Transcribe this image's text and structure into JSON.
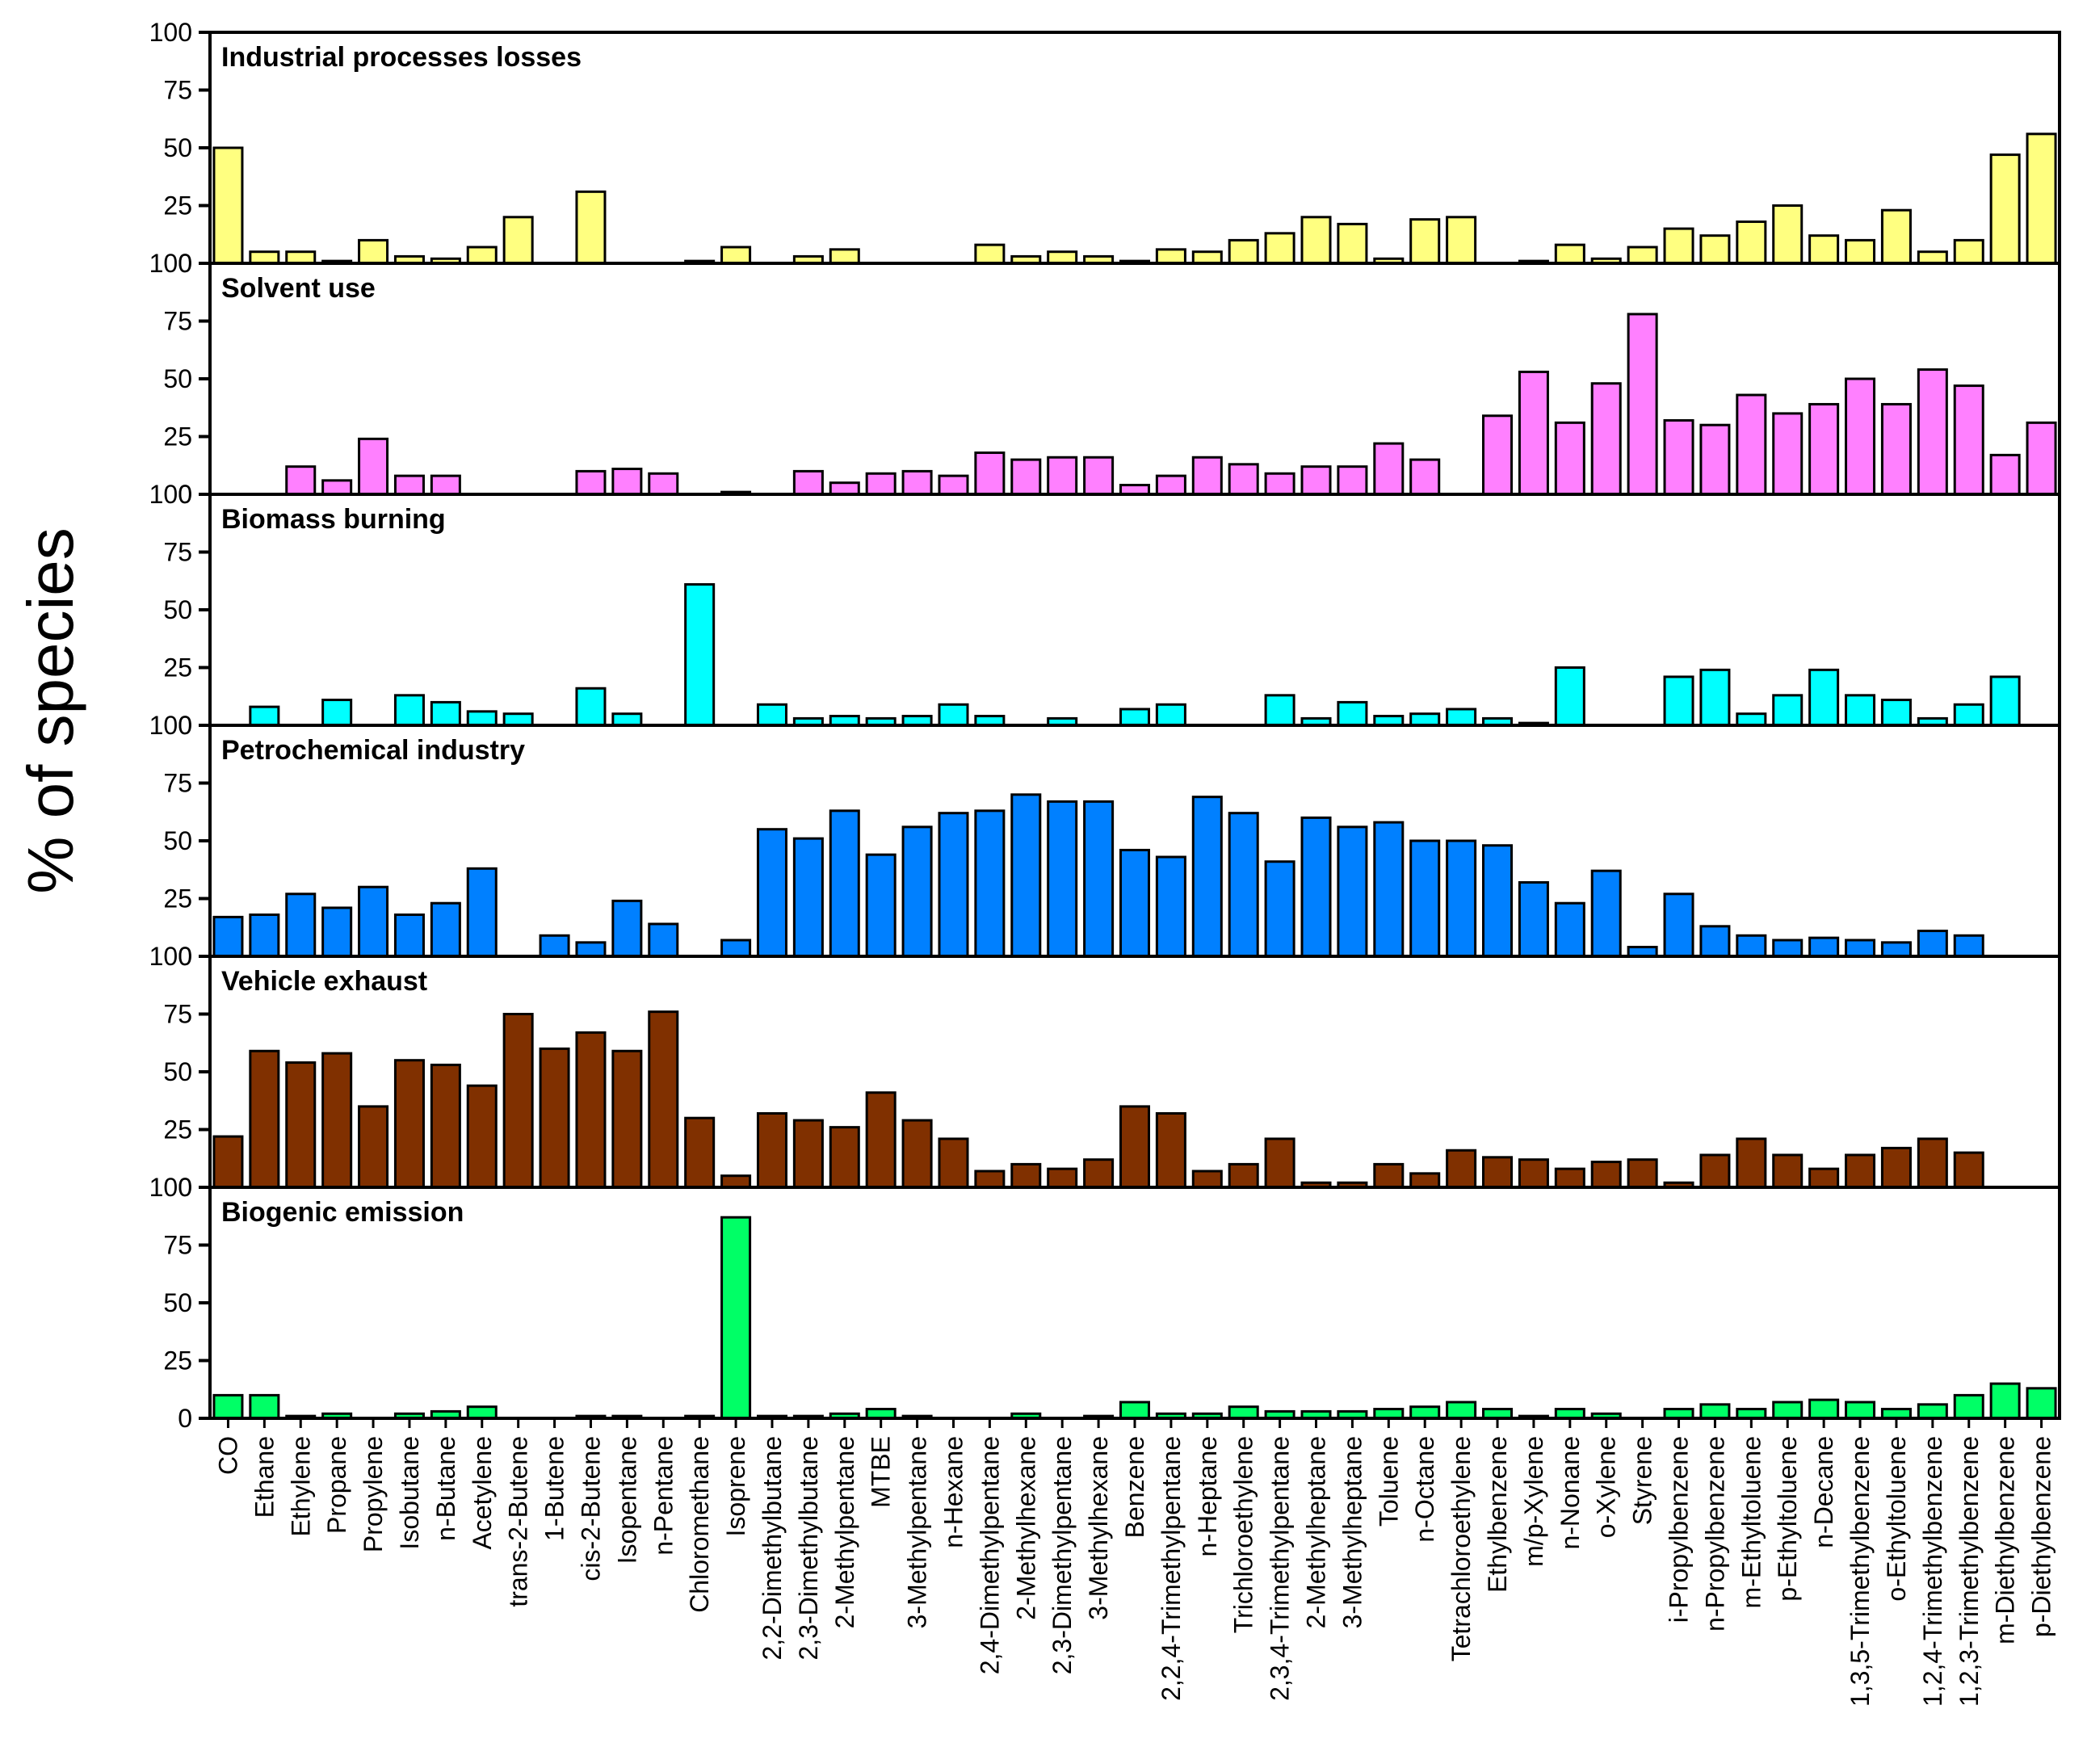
{
  "chart_data": {
    "type": "bar",
    "ylabel": "% of species",
    "ylim": [
      0,
      100
    ],
    "yticks_labels": [
      "0",
      "25",
      "50",
      "75",
      "100"
    ],
    "categories": [
      "CO",
      "Ethane",
      "Ethylene",
      "Propane",
      "Propylene",
      "Isobutane",
      "n-Butane",
      "Acetylene",
      "trans-2-Butene",
      "1-Butene",
      "cis-2-Butene",
      "Isopentane",
      "n-Pentane",
      "Chloromethane",
      "Isoprene",
      "2,2-Dimethylbutane",
      "2,3-Dimethylbutane",
      "2-Methylpentane",
      "MTBE",
      "3-Methylpentane",
      "n-Hexane",
      "2,4-Dimethylpentane",
      "2-Methylhexane",
      "2,3-Dimethylpentane",
      "3-Methylhexane",
      "Benzene",
      "2,2,4-Trimethylpentane",
      "n-Heptane",
      "Trichloroethylene",
      "2,3,4-Trimethylpentane",
      "2-Methylheptane",
      "3-Methylheptane",
      "Toluene",
      "n-Octane",
      "Tetrachloroethylene",
      "Ethylbenzene",
      "m/p-Xylene",
      "n-Nonane",
      "o-Xylene",
      "Styrene",
      "i-Propylbenzene",
      "n-Propylbenzene",
      "m-Ethyltoluene",
      "p-Ethyltoluene",
      "n-Decane",
      "1,3,5-Trimethylbenzene",
      "o-Ethyltoluene",
      "1,2,4-Trimethylbenzene",
      "1,2,3-Trimethylbenzene",
      "m-Diethylbenzene",
      "p-Diethylbenzene"
    ],
    "series": [
      {
        "name": "Industrial processes losses",
        "color": "#FFFF80",
        "values": [
          50,
          5,
          5,
          1,
          10,
          3,
          2,
          7,
          20,
          0,
          31,
          0,
          0,
          1,
          7,
          0,
          3,
          6,
          0,
          0,
          0,
          8,
          3,
          5,
          3,
          1,
          6,
          5,
          10,
          13,
          20,
          17,
          2,
          19,
          20,
          0,
          1,
          8,
          2,
          7,
          15,
          12,
          18,
          25,
          12,
          10,
          23,
          5,
          10,
          47,
          56
        ]
      },
      {
        "name": "Solvent use",
        "color": "#FF80FF",
        "values": [
          0,
          0,
          12,
          6,
          24,
          8,
          8,
          0,
          0,
          0,
          10,
          11,
          9,
          0,
          1,
          0,
          10,
          5,
          9,
          10,
          8,
          18,
          15,
          16,
          16,
          4,
          8,
          16,
          13,
          9,
          12,
          12,
          22,
          15,
          0,
          34,
          53,
          31,
          48,
          78,
          32,
          30,
          43,
          35,
          39,
          50,
          39,
          54,
          47,
          17,
          31
        ]
      },
      {
        "name": "Biomass burning",
        "color": "#00FFFF",
        "values": [
          0,
          8,
          0,
          11,
          0,
          13,
          10,
          6,
          5,
          0,
          16,
          5,
          0,
          61,
          0,
          9,
          3,
          4,
          3,
          4,
          9,
          4,
          0,
          3,
          0,
          7,
          9,
          0,
          0,
          13,
          3,
          10,
          4,
          5,
          7,
          3,
          1,
          25,
          0,
          0,
          21,
          24,
          5,
          13,
          24,
          13,
          11,
          3,
          9,
          21,
          0
        ]
      },
      {
        "name": "Petrochemical industry",
        "color": "#0080FF",
        "values": [
          17,
          18,
          27,
          21,
          30,
          18,
          23,
          38,
          0,
          9,
          6,
          24,
          14,
          0,
          7,
          55,
          51,
          63,
          44,
          56,
          62,
          63,
          70,
          67,
          67,
          46,
          43,
          69,
          62,
          41,
          60,
          56,
          58,
          50,
          50,
          48,
          32,
          23,
          37,
          4,
          27,
          13,
          9,
          7,
          8,
          7,
          6,
          11,
          9,
          0,
          0
        ]
      },
      {
        "name": "Vehicle exhaust",
        "color": "#803000",
        "values": [
          22,
          59,
          54,
          58,
          35,
          55,
          53,
          44,
          75,
          60,
          67,
          59,
          76,
          30,
          5,
          32,
          29,
          26,
          41,
          29,
          21,
          7,
          10,
          8,
          12,
          35,
          32,
          7,
          10,
          21,
          2,
          2,
          10,
          6,
          16,
          13,
          12,
          8,
          11,
          12,
          2,
          14,
          21,
          14,
          8,
          14,
          17,
          21,
          15,
          0,
          0
        ]
      },
      {
        "name": "Biogenic emission",
        "color": "#00FF66",
        "values": [
          10,
          10,
          1,
          2,
          0,
          2,
          3,
          5,
          0,
          0,
          1,
          1,
          0,
          1,
          87,
          1,
          1,
          2,
          4,
          1,
          0,
          0,
          2,
          0,
          1,
          7,
          2,
          2,
          5,
          3,
          3,
          3,
          4,
          5,
          7,
          4,
          1,
          4,
          2,
          0,
          4,
          6,
          4,
          7,
          8,
          7,
          4,
          6,
          10,
          15,
          13
        ]
      }
    ]
  }
}
